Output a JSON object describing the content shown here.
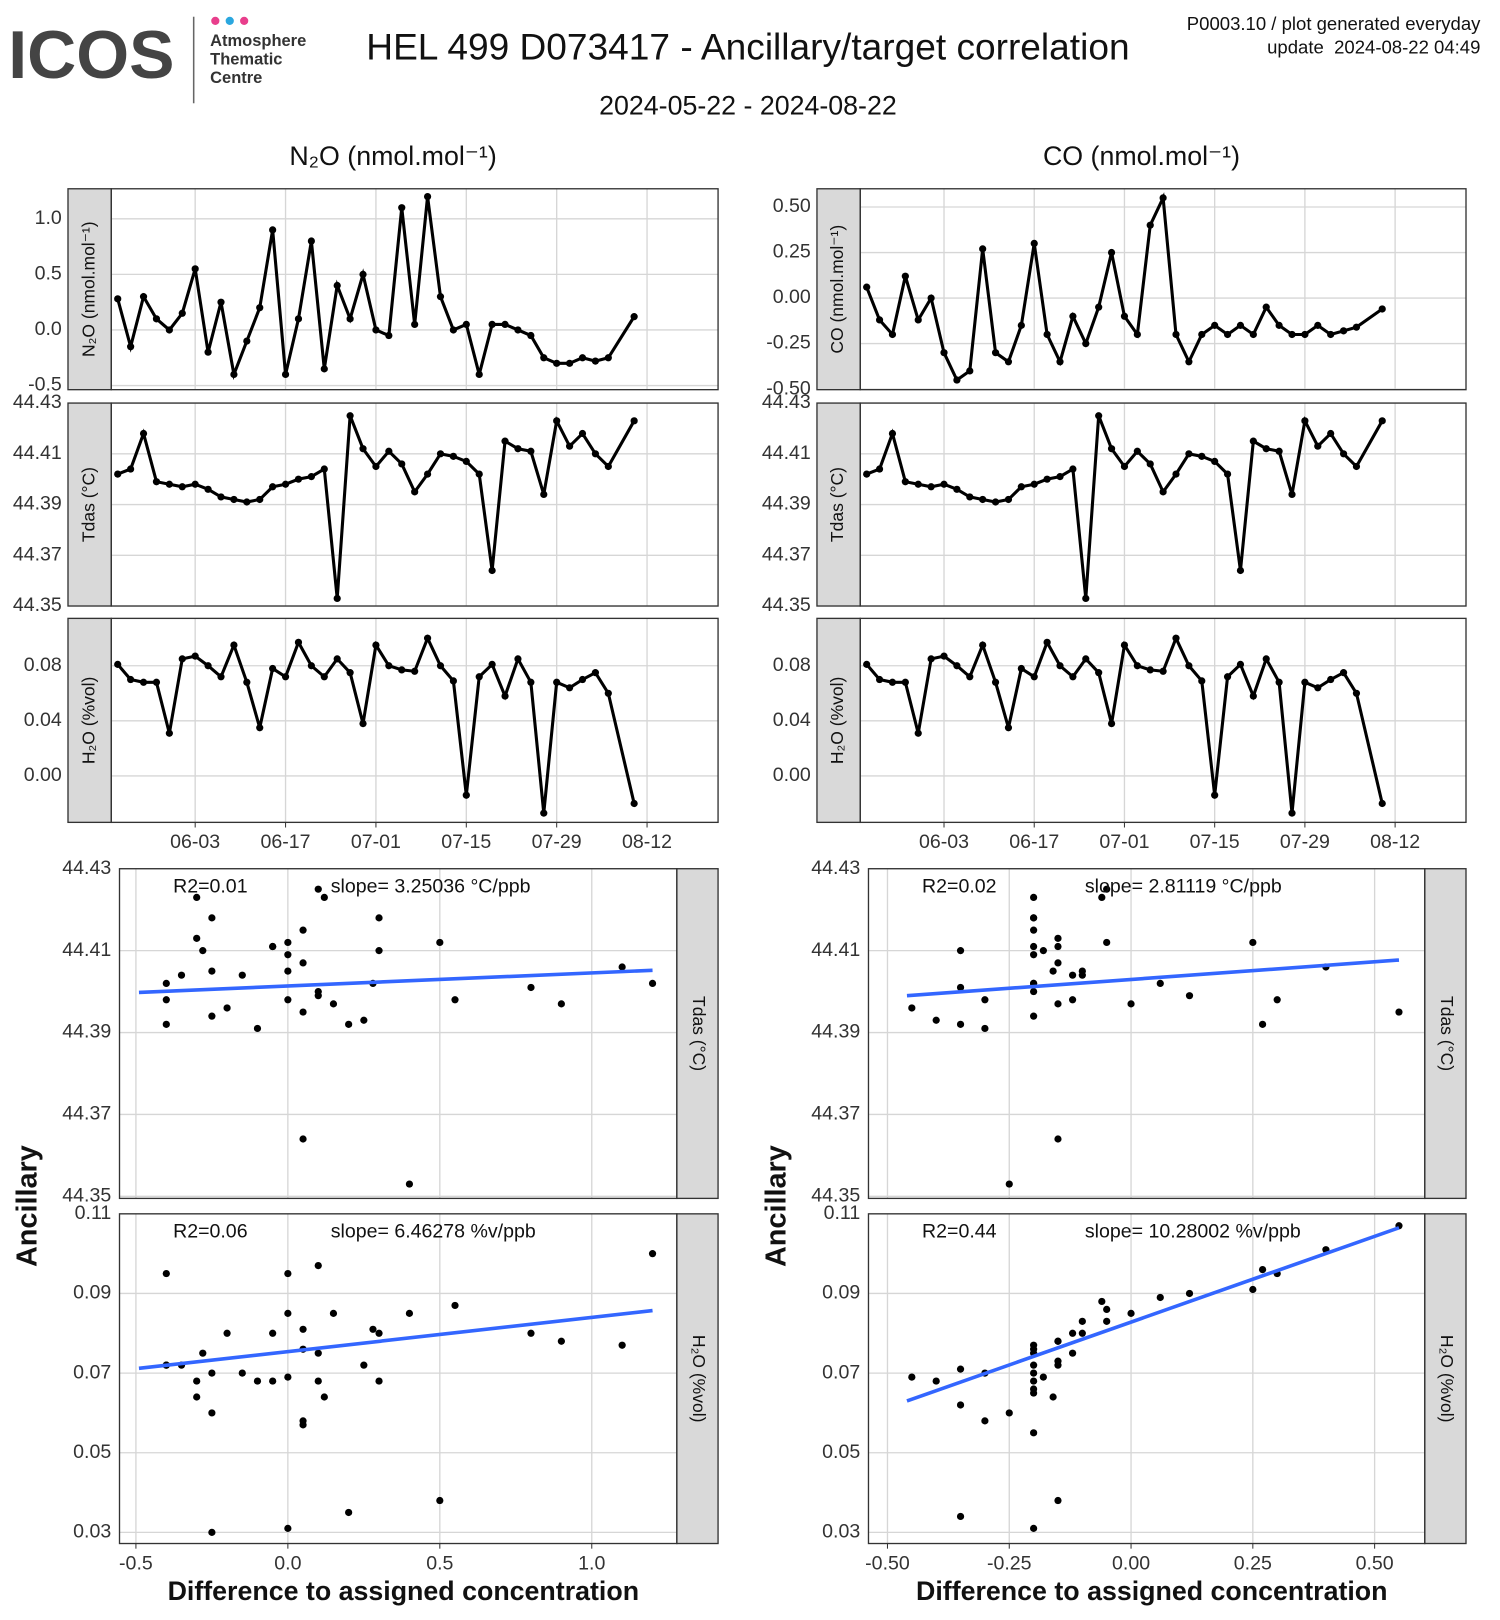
{
  "header": {
    "logo": "ICOS",
    "logo_lines": [
      "Atmosphere",
      "Thematic",
      "Centre"
    ],
    "title": "HEL 499 D073417 - Ancillary/target correlation",
    "subtitle": "2024-05-22 - 2024-08-22",
    "note": [
      "P0003.10 / plot generated everyday",
      "update  2024-08-22 04:49"
    ]
  },
  "chart_data": [
    {
      "type": "line",
      "title": "N₂O (nmol.mol⁻¹)",
      "x": [
        "05-22",
        "05-24",
        "05-26",
        "05-28",
        "05-30",
        "06-01",
        "06-03",
        "06-05",
        "06-07",
        "06-09",
        "06-11",
        "06-13",
        "06-15",
        "06-17",
        "06-19",
        "06-21",
        "06-23",
        "06-25",
        "06-27",
        "06-29",
        "07-01",
        "07-03",
        "07-05",
        "07-07",
        "07-09",
        "07-11",
        "07-13",
        "07-15",
        "07-17",
        "07-19",
        "07-21",
        "07-23",
        "07-25",
        "07-27",
        "07-29",
        "07-31",
        "08-02",
        "08-04",
        "08-06",
        "08-10"
      ],
      "xlim": [
        "05-21",
        "08-23"
      ],
      "xticks": [
        "06-03",
        "06-17",
        "07-01",
        "07-15",
        "07-29",
        "08-12"
      ],
      "grid": true,
      "series": [
        {
          "name": "N₂O (nmol.mol⁻¹)",
          "color": "#000000",
          "ylim": [
            -0.537,
            1.27
          ],
          "yticks": [
            {
              "value": -0.5,
              "label": "-0.5"
            },
            {
              "value": 0,
              "label": "0.0"
            },
            0.5,
            {
              "value": 1,
              "label": "1.0"
            }
          ],
          "values": [
            0.28,
            -0.15,
            0.3,
            0.1,
            0.0,
            0.15,
            0.55,
            -0.2,
            0.25,
            -0.4,
            -0.1,
            0.2,
            0.9,
            -0.4,
            0.1,
            0.8,
            -0.35,
            0.4,
            0.1,
            0.5,
            0.0,
            -0.05,
            1.1,
            0.05,
            1.2,
            0.3,
            0.0,
            0.05,
            -0.4,
            0.05,
            0.05,
            0.0,
            -0.05,
            -0.25,
            -0.3,
            -0.3,
            -0.25,
            -0.28,
            -0.25,
            0.12
          ]
        },
        {
          "name": "Tdas (°C)",
          "color": "#000000",
          "ylim": [
            44.35,
            44.43
          ],
          "yticks": [
            44.35,
            44.37,
            44.39,
            44.41,
            44.43
          ],
          "values": [
            44.402,
            44.404,
            44.418,
            44.399,
            44.398,
            44.397,
            44.398,
            44.396,
            44.393,
            44.392,
            44.391,
            44.392,
            44.397,
            44.398,
            44.4,
            44.401,
            44.404,
            44.353,
            44.425,
            44.412,
            44.405,
            44.411,
            44.406,
            44.395,
            44.402,
            44.41,
            44.409,
            44.407,
            44.402,
            44.364,
            44.415,
            44.412,
            44.411,
            44.394,
            44.423,
            44.413,
            44.418,
            44.41,
            44.405,
            44.423
          ]
        },
        {
          "name": "H₂O (%vol)",
          "color": "#000000",
          "ylim": [
            -0.0337,
            0.1144
          ],
          "yticks": [
            {
              "value": 0,
              "label": "0.00"
            },
            0.04,
            0.08
          ],
          "values": [
            0.081,
            0.07,
            0.068,
            0.068,
            0.031,
            0.085,
            0.087,
            0.08,
            0.072,
            0.095,
            0.068,
            0.035,
            0.078,
            0.072,
            0.097,
            0.08,
            0.072,
            0.085,
            0.075,
            0.038,
            0.095,
            0.08,
            0.077,
            0.076,
            0.1,
            0.08,
            0.069,
            -0.014,
            0.072,
            0.081,
            0.058,
            0.085,
            0.068,
            -0.027,
            0.068,
            0.064,
            0.07,
            0.075,
            0.06,
            -0.02
          ]
        }
      ]
    },
    {
      "type": "line",
      "title": "CO (nmol.mol⁻¹)",
      "x": [
        "05-22",
        "05-24",
        "05-26",
        "05-28",
        "05-30",
        "06-01",
        "06-03",
        "06-05",
        "06-07",
        "06-09",
        "06-11",
        "06-13",
        "06-15",
        "06-17",
        "06-19",
        "06-21",
        "06-23",
        "06-25",
        "06-27",
        "06-29",
        "07-01",
        "07-03",
        "07-05",
        "07-07",
        "07-09",
        "07-11",
        "07-13",
        "07-15",
        "07-17",
        "07-19",
        "07-21",
        "07-23",
        "07-25",
        "07-27",
        "07-29",
        "07-31",
        "08-02",
        "08-04",
        "08-06",
        "08-10"
      ],
      "xlim": [
        "05-21",
        "08-23"
      ],
      "xticks": [
        "06-03",
        "06-17",
        "07-01",
        "07-15",
        "07-29",
        "08-12"
      ],
      "grid": true,
      "series": [
        {
          "name": "CO (nmol.mol⁻¹)",
          "color": "#000000",
          "ylim": [
            -0.503,
            0.6
          ],
          "yticks": [
            {
              "value": -0.5,
              "label": "-0.50"
            },
            -0.25,
            {
              "value": 0,
              "label": "0.00"
            },
            0.25,
            {
              "value": 0.5,
              "label": "0.50"
            }
          ],
          "values": [
            0.06,
            -0.12,
            -0.2,
            0.12,
            -0.12,
            0.0,
            -0.3,
            -0.45,
            -0.4,
            0.27,
            -0.3,
            -0.35,
            -0.15,
            0.3,
            -0.2,
            -0.35,
            -0.1,
            -0.25,
            -0.05,
            0.25,
            -0.1,
            -0.2,
            0.4,
            0.55,
            -0.2,
            -0.35,
            -0.2,
            -0.15,
            -0.2,
            -0.15,
            -0.2,
            -0.05,
            -0.15,
            -0.2,
            -0.2,
            -0.15,
            -0.2,
            -0.18,
            -0.16,
            -0.06
          ]
        },
        {
          "name": "Tdas (°C)",
          "color": "#000000",
          "ylim": [
            44.35,
            44.43
          ],
          "yticks": [
            44.35,
            44.37,
            44.39,
            44.41,
            44.43
          ],
          "values": [
            44.402,
            44.404,
            44.418,
            44.399,
            44.398,
            44.397,
            44.398,
            44.396,
            44.393,
            44.392,
            44.391,
            44.392,
            44.397,
            44.398,
            44.4,
            44.401,
            44.404,
            44.353,
            44.425,
            44.412,
            44.405,
            44.411,
            44.406,
            44.395,
            44.402,
            44.41,
            44.409,
            44.407,
            44.402,
            44.364,
            44.415,
            44.412,
            44.411,
            44.394,
            44.423,
            44.413,
            44.418,
            44.41,
            44.405,
            44.423
          ]
        },
        {
          "name": "H₂O (%vol)",
          "color": "#000000",
          "ylim": [
            -0.0337,
            0.1144
          ],
          "yticks": [
            {
              "value": 0,
              "label": "0.00"
            },
            0.04,
            0.08
          ],
          "values": [
            0.081,
            0.07,
            0.068,
            0.068,
            0.031,
            0.085,
            0.087,
            0.08,
            0.072,
            0.095,
            0.068,
            0.035,
            0.078,
            0.072,
            0.097,
            0.08,
            0.072,
            0.085,
            0.075,
            0.038,
            0.095,
            0.08,
            0.077,
            0.076,
            0.1,
            0.08,
            0.069,
            -0.014,
            0.072,
            0.081,
            0.058,
            0.085,
            0.068,
            -0.027,
            0.068,
            0.064,
            0.07,
            0.075,
            0.06,
            -0.02
          ]
        }
      ]
    },
    {
      "type": "scatter",
      "xlabel": "Difference to assigned concentration",
      "ylabel": "Ancillary",
      "x": [
        0.28,
        -0.15,
        0.3,
        0.1,
        0.0,
        0.15,
        0.55,
        -0.2,
        0.25,
        -0.4,
        -0.1,
        0.2,
        0.9,
        -0.4,
        0.1,
        0.8,
        -0.35,
        0.4,
        0.1,
        0.5,
        0.0,
        -0.05,
        1.1,
        0.05,
        1.2,
        0.3,
        0.0,
        0.05,
        -0.4,
        0.05,
        0.05,
        0.0,
        -0.05,
        -0.25,
        -0.3,
        -0.3,
        -0.25,
        -0.28,
        -0.25,
        0.12
      ],
      "xlim": [
        -0.554,
        1.28
      ],
      "xticks": [
        -0.5,
        {
          "value": 0,
          "label": "0.0"
        },
        0.5,
        {
          "value": 1,
          "label": "1.0"
        }
      ],
      "grid": true,
      "series": [
        {
          "name": "Tdas (°C)",
          "color": "#000000",
          "ylim": [
            44.3495,
            44.43
          ],
          "yticks": [
            44.35,
            44.37,
            44.39,
            44.41,
            44.43
          ],
          "annotations": [
            "R2=0.01",
            "slope= 3.25036 °C/ppb"
          ],
          "fit": {
            "x": [
              -0.49,
              1.2
            ],
            "y": [
              44.3998,
              44.4052
            ],
            "color": "#3366ff"
          },
          "values": [
            44.402,
            44.404,
            44.418,
            44.399,
            44.398,
            44.397,
            44.398,
            44.396,
            44.393,
            44.392,
            44.391,
            44.392,
            44.397,
            44.398,
            44.4,
            44.401,
            44.404,
            44.353,
            44.425,
            44.412,
            44.405,
            44.411,
            44.406,
            44.395,
            44.402,
            44.41,
            44.409,
            44.407,
            44.402,
            44.364,
            44.415,
            44.412,
            44.411,
            44.394,
            44.423,
            44.413,
            44.418,
            44.41,
            44.405,
            44.423
          ]
        },
        {
          "name": "H₂O (%vol)",
          "color": "#000000",
          "ylim": [
            0.0272,
            0.11
          ],
          "yticks": [
            0.03,
            0.05,
            0.07,
            0.09,
            0.11
          ],
          "annotations": [
            "R2=0.06",
            "slope= 6.46278 %v/ppb"
          ],
          "fit": {
            "x": [
              -0.49,
              1.2
            ],
            "y": [
              0.0712,
              0.0857
            ],
            "color": "#3366ff"
          },
          "values": [
            0.081,
            0.07,
            0.068,
            0.068,
            0.031,
            0.085,
            0.087,
            0.08,
            0.072,
            0.095,
            0.068,
            0.035,
            0.078,
            0.072,
            0.097,
            0.08,
            0.072,
            0.085,
            0.075,
            0.038,
            0.095,
            0.08,
            0.077,
            0.076,
            0.1,
            0.08,
            0.069,
            0.057,
            0.072,
            0.081,
            0.058,
            0.085,
            0.068,
            0.03,
            0.068,
            0.064,
            0.07,
            0.075,
            0.06,
            0.064
          ]
        }
      ]
    },
    {
      "type": "scatter",
      "xlabel": "Difference to assigned concentration",
      "ylabel": "Ancillary",
      "x": [
        0.06,
        -0.12,
        -0.2,
        0.12,
        -0.12,
        0.0,
        -0.3,
        -0.45,
        -0.4,
        0.27,
        -0.3,
        -0.35,
        -0.15,
        0.3,
        -0.2,
        -0.35,
        -0.1,
        -0.25,
        -0.05,
        0.25,
        -0.1,
        -0.2,
        0.4,
        0.55,
        -0.2,
        -0.35,
        -0.2,
        -0.15,
        -0.2,
        -0.15,
        -0.2,
        -0.05,
        -0.15,
        -0.2,
        -0.2,
        -0.15,
        -0.2,
        -0.18,
        -0.16,
        -0.06
      ],
      "xlim": [
        -0.539,
        0.603
      ],
      "xticks": [
        {
          "value": -0.5,
          "label": "-0.50"
        },
        -0.25,
        {
          "value": 0,
          "label": "0.00"
        },
        0.25,
        {
          "value": 0.5,
          "label": "0.50"
        }
      ],
      "grid": true,
      "series": [
        {
          "name": "Tdas (°C)",
          "color": "#000000",
          "ylim": [
            44.3495,
            44.43
          ],
          "yticks": [
            44.35,
            44.37,
            44.39,
            44.41,
            44.43
          ],
          "annotations": [
            "R2=0.02",
            "slope= 2.81119 °C/ppb"
          ],
          "fit": {
            "x": [
              -0.46,
              0.55
            ],
            "y": [
              44.399,
              44.4077
            ],
            "color": "#3366ff"
          },
          "values": [
            44.402,
            44.404,
            44.418,
            44.399,
            44.398,
            44.397,
            44.398,
            44.396,
            44.393,
            44.392,
            44.391,
            44.392,
            44.397,
            44.398,
            44.4,
            44.401,
            44.404,
            44.353,
            44.425,
            44.412,
            44.405,
            44.411,
            44.406,
            44.395,
            44.402,
            44.41,
            44.409,
            44.407,
            44.402,
            44.364,
            44.415,
            44.412,
            44.411,
            44.394,
            44.423,
            44.413,
            44.418,
            44.41,
            44.405,
            44.423
          ]
        },
        {
          "name": "H₂O (%vol)",
          "color": "#000000",
          "ylim": [
            0.0272,
            0.11
          ],
          "yticks": [
            0.03,
            0.05,
            0.07,
            0.09,
            0.11
          ],
          "annotations": [
            "R2=0.44",
            "slope= 10.28002 %v/ppb"
          ],
          "fit": {
            "x": [
              -0.46,
              0.55
            ],
            "y": [
              0.063,
              0.1065
            ],
            "color": "#3366ff"
          },
          "values": [
            0.089,
            0.08,
            0.072,
            0.09,
            0.075,
            0.085,
            0.07,
            0.069,
            0.068,
            0.096,
            0.058,
            0.062,
            0.078,
            0.095,
            0.066,
            0.071,
            0.083,
            0.06,
            0.086,
            0.091,
            0.08,
            0.07,
            0.101,
            0.107,
            0.055,
            0.034,
            0.075,
            0.078,
            0.065,
            0.038,
            0.077,
            0.083,
            0.072,
            0.068,
            0.031,
            0.073,
            0.076,
            0.069,
            0.064,
            0.088
          ]
        }
      ]
    }
  ]
}
